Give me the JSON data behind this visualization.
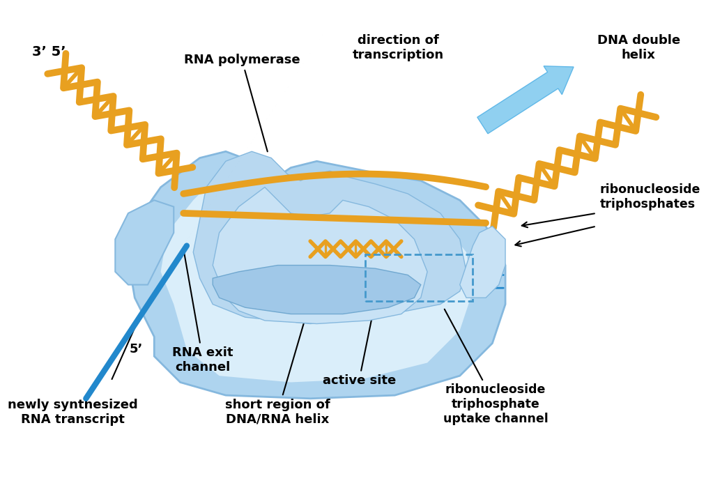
{
  "fig_width": 10.23,
  "fig_height": 6.93,
  "dpi": 100,
  "bg_color": "#ffffff",
  "body_color": "#aed4ef",
  "body_edge": "#85b8de",
  "body_dark": "#7bafd8",
  "body_light": "#c8e2f5",
  "body_lighter": "#daeefa",
  "dna_color": "#e8a020",
  "dna_lw": 7,
  "rna_color": "#2288cc",
  "arrow_color": "#90d0f0",
  "arrow_edge": "#60b8e8",
  "ann_lw": 1.5,
  "label_fs": 13,
  "labels": {
    "three_prime": "3’ 5’",
    "rna_pol": "RNA polymerase",
    "direction": "direction of\ntranscription",
    "dna_helix": "DNA double\nhelix",
    "ribonuc1": "ribonucleoside\ntriphosphates",
    "ribonuc2": "ribonucleoside\ntriphosphate\nuptake channel",
    "rna_exit": "RNA exit\nchannel",
    "active_site": "active site",
    "short_region": "short region of\nDNA/RNA helix",
    "newly_synth": "newly synthesized\nRNA transcript",
    "five_bottom": "5’"
  }
}
